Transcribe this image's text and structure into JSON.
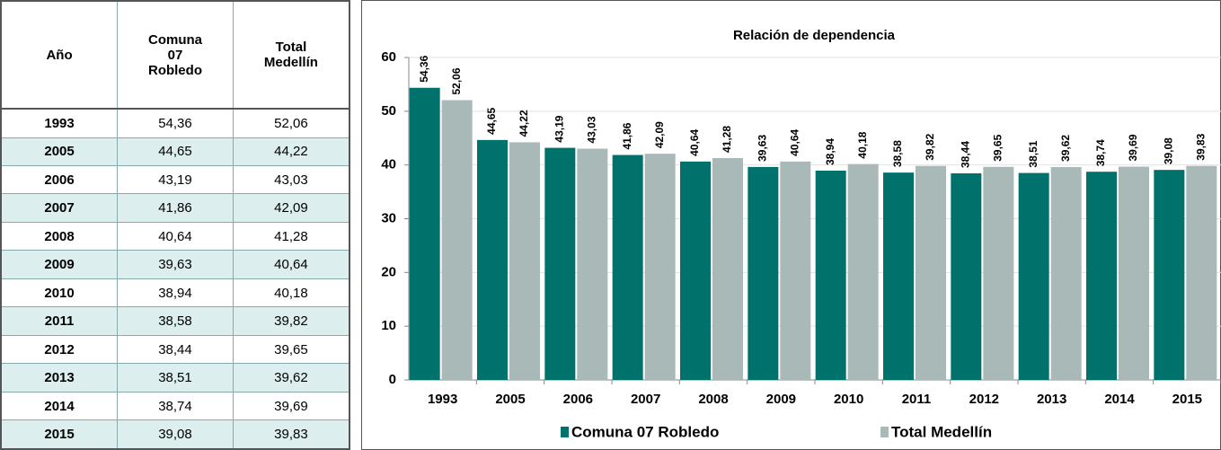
{
  "table": {
    "header": [
      "Año",
      "Comuna 07 Robledo",
      "Total Medellín"
    ],
    "rows": [
      [
        "1993",
        "54,36",
        "52,06"
      ],
      [
        "2005",
        "44,65",
        "44,22"
      ],
      [
        "2006",
        "43,19",
        "43,03"
      ],
      [
        "2007",
        "41,86",
        "42,09"
      ],
      [
        "2008",
        "40,64",
        "41,28"
      ],
      [
        "2009",
        "39,63",
        "40,64"
      ],
      [
        "2010",
        "38,94",
        "40,18"
      ],
      [
        "2011",
        "38,58",
        "39,82"
      ],
      [
        "2012",
        "38,44",
        "39,65"
      ],
      [
        "2013",
        "38,51",
        "39,62"
      ],
      [
        "2014",
        "38,74",
        "39,69"
      ],
      [
        "2015",
        "39,08",
        "39,83"
      ]
    ]
  },
  "chart_data": {
    "type": "bar",
    "title": "Relación de dependencia",
    "categories": [
      "1993",
      "2005",
      "2006",
      "2007",
      "2008",
      "2009",
      "2010",
      "2011",
      "2012",
      "2013",
      "2014",
      "2015"
    ],
    "series": [
      {
        "name": "Comuna 07 Robledo",
        "color": "#00716b",
        "values": [
          54.36,
          44.65,
          43.19,
          41.86,
          40.64,
          39.63,
          38.94,
          38.58,
          38.44,
          38.51,
          38.74,
          39.08
        ],
        "value_labels": [
          "54,36",
          "44,65",
          "43,19",
          "41,86",
          "40,64",
          "39,63",
          "38,94",
          "38,58",
          "38,44",
          "38,51",
          "38,74",
          "39,08"
        ]
      },
      {
        "name": "Total Medellín",
        "color": "#a9b9b8",
        "values": [
          52.06,
          44.22,
          43.03,
          42.09,
          41.28,
          40.64,
          40.18,
          39.82,
          39.65,
          39.62,
          39.69,
          39.83
        ],
        "value_labels": [
          "52,06",
          "44,22",
          "43,03",
          "42,09",
          "41,28",
          "40,64",
          "40,18",
          "39,82",
          "39,65",
          "39,62",
          "39,69",
          "39,83"
        ]
      }
    ],
    "ylim": [
      0,
      60
    ],
    "yticks": [
      0,
      10,
      20,
      30,
      40,
      50,
      60
    ],
    "grid": true,
    "legend": "bottom"
  }
}
